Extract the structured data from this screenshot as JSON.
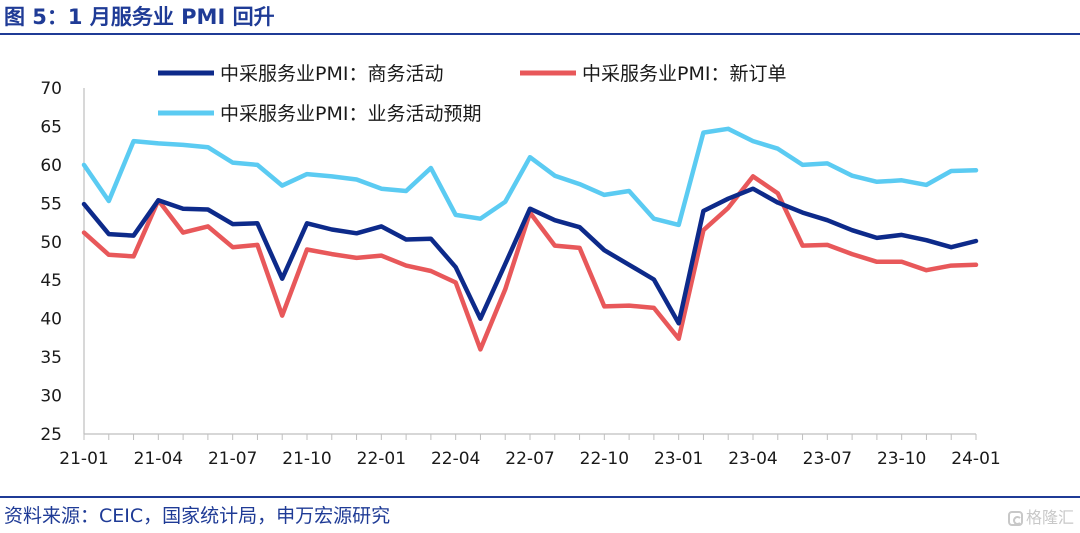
{
  "figure": {
    "title": "图 5：1 月服务业 PMI 回升",
    "source": "资料来源：CEIC，国家统计局，申万宏源研究",
    "watermark": "格隆汇",
    "watermark_icon": "gelonghui-logo-icon"
  },
  "chart_data": {
    "type": "line",
    "ylim": [
      25,
      70
    ],
    "yticks": [
      25,
      30,
      35,
      40,
      45,
      50,
      55,
      60,
      65,
      70
    ],
    "x": [
      "21-01",
      "21-02",
      "21-03",
      "21-04",
      "21-05",
      "21-06",
      "21-07",
      "21-08",
      "21-09",
      "21-10",
      "21-11",
      "21-12",
      "22-01",
      "22-02",
      "22-03",
      "22-04",
      "22-05",
      "22-06",
      "22-07",
      "22-08",
      "22-09",
      "22-10",
      "22-11",
      "22-12",
      "23-01",
      "23-02",
      "23-03",
      "23-04",
      "23-05",
      "23-06",
      "23-07",
      "23-08",
      "23-09",
      "23-10",
      "23-11",
      "23-12",
      "24-01"
    ],
    "xtick_labels": [
      "21-01",
      "21-04",
      "21-07",
      "21-10",
      "22-01",
      "22-04",
      "22-07",
      "22-10",
      "23-01",
      "23-04",
      "23-07",
      "23-10",
      "24-01"
    ],
    "legend_position": "top",
    "grid": false,
    "series": [
      {
        "name": "中采服务业PMI：商务活动",
        "color": "#0d2a8a",
        "values": [
          54.9,
          51.0,
          50.8,
          55.4,
          54.3,
          54.2,
          52.3,
          52.4,
          45.2,
          52.4,
          51.6,
          51.1,
          52.0,
          50.3,
          50.4,
          46.7,
          40.0,
          47.1,
          54.3,
          52.8,
          51.9,
          48.9,
          47.0,
          45.1,
          39.4,
          54.0,
          55.6,
          56.9,
          55.1,
          53.8,
          52.8,
          51.5,
          50.5,
          50.9,
          50.2,
          49.3,
          50.1
        ]
      },
      {
        "name": "中采服务业PMI：新订单",
        "color": "#e8585a",
        "values": [
          51.2,
          48.3,
          48.1,
          55.4,
          51.2,
          52.0,
          49.3,
          49.6,
          40.4,
          49.0,
          48.4,
          47.9,
          48.2,
          46.9,
          46.2,
          44.7,
          36.0,
          43.8,
          53.8,
          49.5,
          49.2,
          41.6,
          41.7,
          41.4,
          37.4,
          51.5,
          54.4,
          58.5,
          56.3,
          49.5,
          49.6,
          48.4,
          47.4,
          47.4,
          46.3,
          46.9,
          47.0
        ]
      },
      {
        "name": "中采服务业PMI：业务活动预期",
        "color": "#5bcbf2",
        "values": [
          60.0,
          55.3,
          63.1,
          62.8,
          62.6,
          62.3,
          60.3,
          60.0,
          57.3,
          58.8,
          58.5,
          58.1,
          56.9,
          56.6,
          59.6,
          53.5,
          53.0,
          55.2,
          61.0,
          58.6,
          57.5,
          56.1,
          56.6,
          53.0,
          52.2,
          64.2,
          64.7,
          63.1,
          62.1,
          60.0,
          60.2,
          58.6,
          57.8,
          58.0,
          57.4,
          59.2,
          59.3
        ]
      }
    ]
  }
}
